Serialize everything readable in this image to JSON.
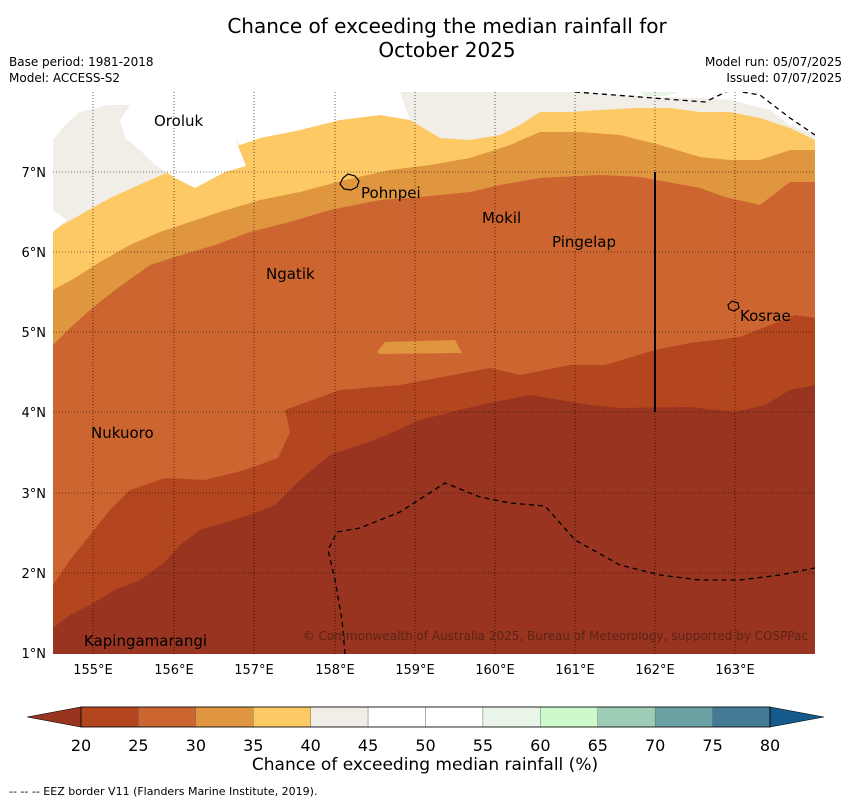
{
  "title_line1": "Chance of exceeding the median rainfall for",
  "title_line2": "October 2025",
  "meta_left": [
    "Base period: 1981-2018",
    "Model: ACCESS-S2"
  ],
  "meta_right": [
    "Model run: 05/07/2025",
    "Issued: 07/07/2025"
  ],
  "map": {
    "lon_ticks": [
      "155°E",
      "156°E",
      "157°E",
      "158°E",
      "159°E",
      "160°E",
      "161°E",
      "162°E",
      "163°E"
    ],
    "lat_ticks": [
      "7°N",
      "6°N",
      "5°N",
      "4°N",
      "3°N",
      "2°N",
      "1°N"
    ],
    "places": [
      "Oroluk",
      "Pohnpei",
      "Mokil",
      "Pingelap",
      "Ngatik",
      "Kosrae",
      "Nukuoro",
      "Kapingamarangi"
    ],
    "copyright": "© Commonwealth of Australia 2025, Bureau of Meteorology, supported by COSPPac"
  },
  "colorbar": {
    "labels": [
      "20",
      "25",
      "30",
      "35",
      "40",
      "45",
      "50",
      "55",
      "60",
      "65",
      "70",
      "75",
      "80"
    ],
    "colors": [
      "#983420",
      "#b3451f",
      "#cc6530",
      "#e0953f",
      "#fdc965",
      "#f1ede7",
      "#ffffff",
      "#ffffff",
      "#e9f5e8",
      "#ccfacc",
      "#9dcdb5",
      "#6aa2a4",
      "#437b97",
      "#155a8b"
    ],
    "title": "Chance of exceeding median rainfall (%)"
  },
  "footer": "--  --  -- EEZ border V11 (Flanders Marine Institute, 2019)."
}
